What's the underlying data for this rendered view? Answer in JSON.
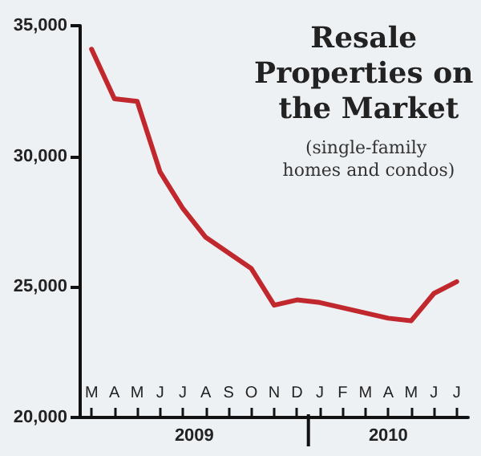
{
  "chart_data": {
    "type": "line",
    "title": "Resale Properties on the Market",
    "subtitle": "(single-family homes and condos)",
    "categories": [
      "M",
      "A",
      "M",
      "J",
      "J",
      "A",
      "S",
      "O",
      "N",
      "D",
      "J",
      "F",
      "M",
      "A",
      "M",
      "J",
      "J"
    ],
    "values": [
      34100,
      32200,
      32100,
      29400,
      28000,
      26900,
      26300,
      25700,
      24300,
      24500,
      24400,
      24200,
      24000,
      23800,
      23700,
      24750,
      25200
    ],
    "color": "#c0282d",
    "ylim": [
      20000,
      35000
    ],
    "yticks": [
      {
        "value": 20000,
        "label": "20,000"
      },
      {
        "value": 25000,
        "label": "25,000"
      },
      {
        "value": 30000,
        "label": "30,000"
      },
      {
        "value": 35000,
        "label": "35,000"
      }
    ],
    "grid": false,
    "marker": "none",
    "line_style": "solid",
    "annotations": [
      "2009",
      "2010"
    ]
  }
}
